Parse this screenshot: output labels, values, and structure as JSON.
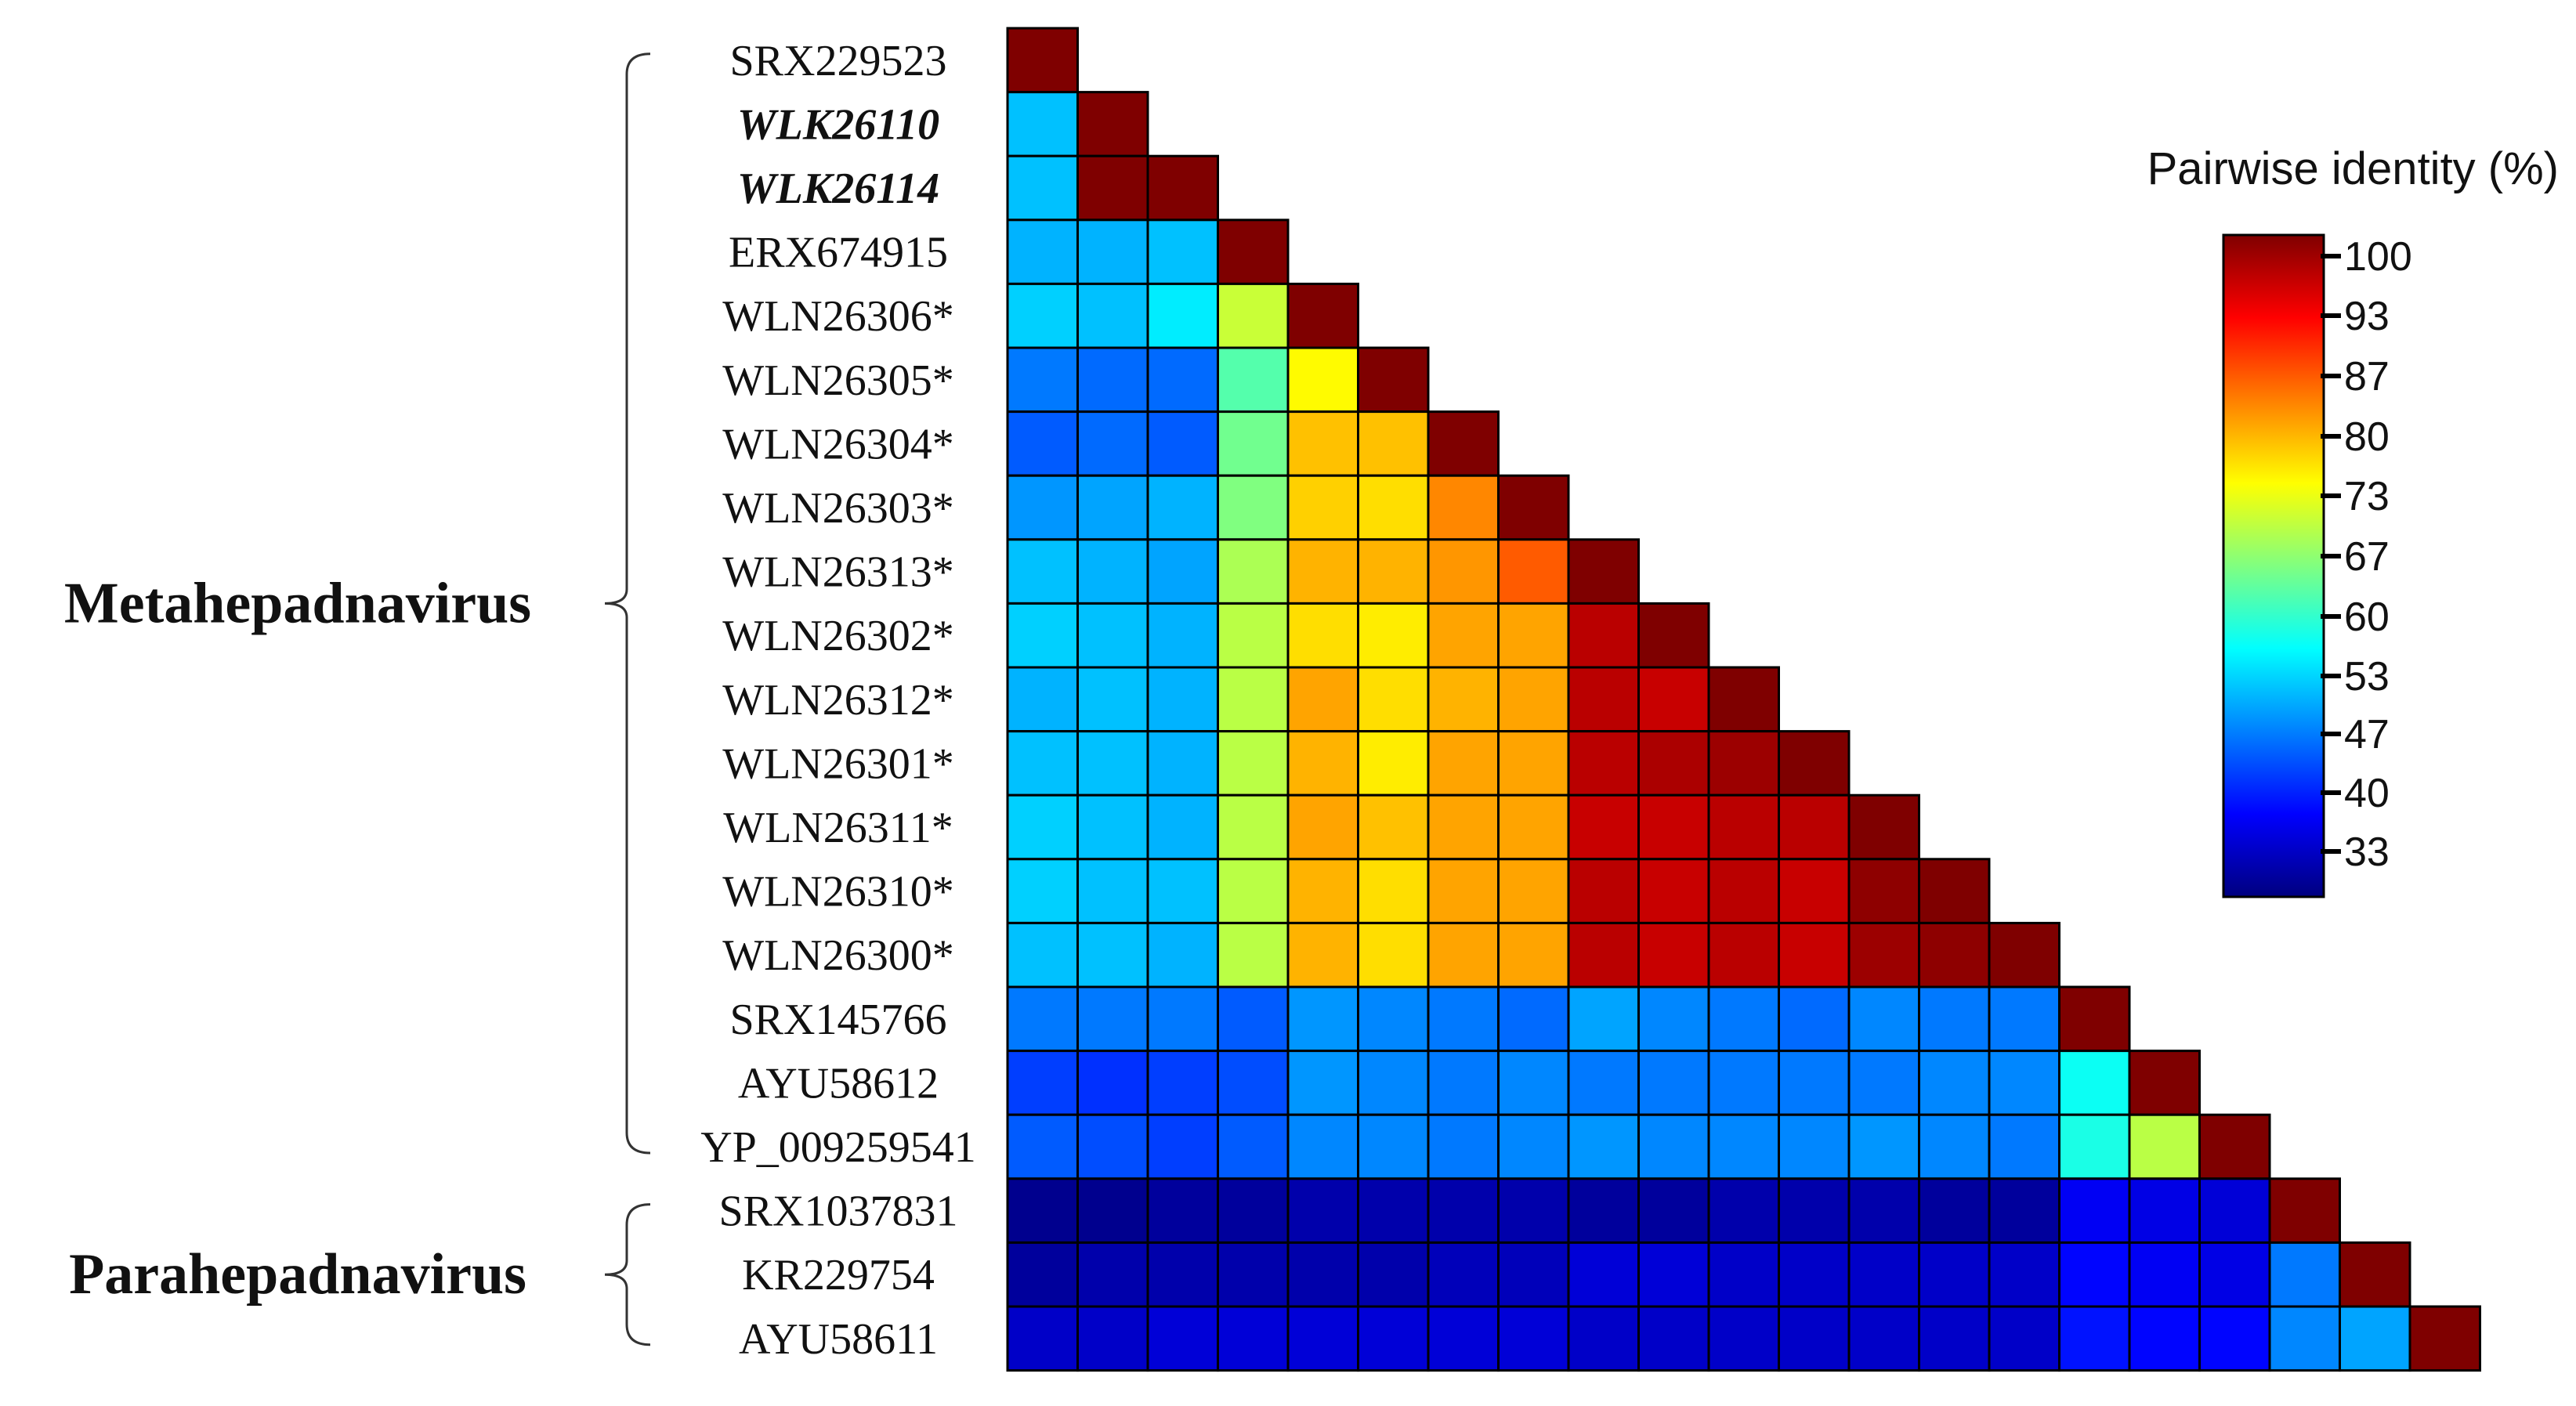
{
  "chart_data": {
    "type": "heatmap",
    "subtype": "lower-triangular pairwise identity matrix",
    "row_labels": [
      "SRX229523",
      "WLK26110",
      "WLK26114",
      "ERX674915",
      "WLN26306*",
      "WLN26305*",
      "WLN26304*",
      "WLN26303*",
      "WLN26313*",
      "WLN26302*",
      "WLN26312*",
      "WLN26301*",
      "WLN26311*",
      "WLN26310*",
      "WLN26300*",
      "SRX145766",
      "AYU58612",
      "YP_009259541",
      "SRX1037831",
      "KR229754",
      "AYU58611"
    ],
    "emphasized_rows": [
      "WLK26110",
      "WLK26114"
    ],
    "groups": [
      {
        "name": "Metahepadnavirus",
        "first_row": 0,
        "last_row": 17
      },
      {
        "name": "Parahepadnavirus",
        "first_row": 18,
        "last_row": 20
      }
    ],
    "matrix": [
      [
        100
      ],
      [
        52,
        100
      ],
      [
        52,
        100,
        100
      ],
      [
        51,
        51,
        52,
        100
      ],
      [
        53,
        52,
        55,
        70,
        100
      ],
      [
        47,
        46,
        46,
        62,
        74,
        100
      ],
      [
        45,
        46,
        45,
        64,
        78,
        78,
        100
      ],
      [
        49,
        50,
        51,
        65,
        77,
        76,
        82,
        100
      ],
      [
        52,
        51,
        50,
        68,
        79,
        79,
        81,
        85,
        100
      ],
      [
        53,
        52,
        51,
        69,
        76,
        75,
        80,
        80,
        96,
        100
      ],
      [
        51,
        52,
        51,
        69,
        80,
        76,
        79,
        80,
        96,
        95,
        100
      ],
      [
        52,
        52,
        51,
        69,
        79,
        75,
        80,
        80,
        96,
        97,
        98,
        100
      ],
      [
        53,
        52,
        51,
        69,
        80,
        78,
        80,
        80,
        95,
        95,
        96,
        96,
        100
      ],
      [
        53,
        52,
        52,
        69,
        79,
        76,
        80,
        80,
        96,
        95,
        96,
        95,
        99,
        100
      ],
      [
        52,
        52,
        51,
        69,
        79,
        76,
        80,
        80,
        96,
        95,
        96,
        95,
        98,
        99,
        100
      ],
      [
        47,
        47,
        47,
        45,
        49,
        48,
        47,
        46,
        50,
        48,
        47,
        46,
        48,
        47,
        47,
        100
      ],
      [
        43,
        42,
        43,
        44,
        49,
        48,
        47,
        48,
        47,
        47,
        47,
        47,
        47,
        48,
        48,
        57,
        100
      ],
      [
        45,
        44,
        43,
        45,
        48,
        48,
        47,
        48,
        49,
        48,
        48,
        48,
        49,
        48,
        47,
        58,
        69,
        100
      ],
      [
        31,
        31,
        32,
        32,
        33,
        33,
        33,
        33,
        32,
        32,
        33,
        33,
        33,
        32,
        32,
        38,
        37,
        36,
        100
      ],
      [
        32,
        33,
        33,
        33,
        33,
        33,
        34,
        34,
        36,
        36,
        35,
        35,
        35,
        35,
        35,
        39,
        38,
        37,
        47,
        100
      ],
      [
        35,
        35,
        36,
        36,
        36,
        36,
        36,
        36,
        35,
        35,
        35,
        35,
        35,
        35,
        35,
        40,
        39,
        39,
        48,
        50,
        100
      ]
    ],
    "colorbar": {
      "title": "Pairwise identity (%)",
      "range": [
        30,
        100
      ],
      "ticks": [
        100,
        93,
        87,
        80,
        73,
        67,
        60,
        53,
        47,
        40,
        33
      ],
      "colormap": [
        "#00007f",
        "#0000ff",
        "#0080ff",
        "#00ffff",
        "#80ff80",
        "#ffff00",
        "#ff8000",
        "#ff0000",
        "#7f0000"
      ]
    },
    "legend_position": "top-right"
  }
}
